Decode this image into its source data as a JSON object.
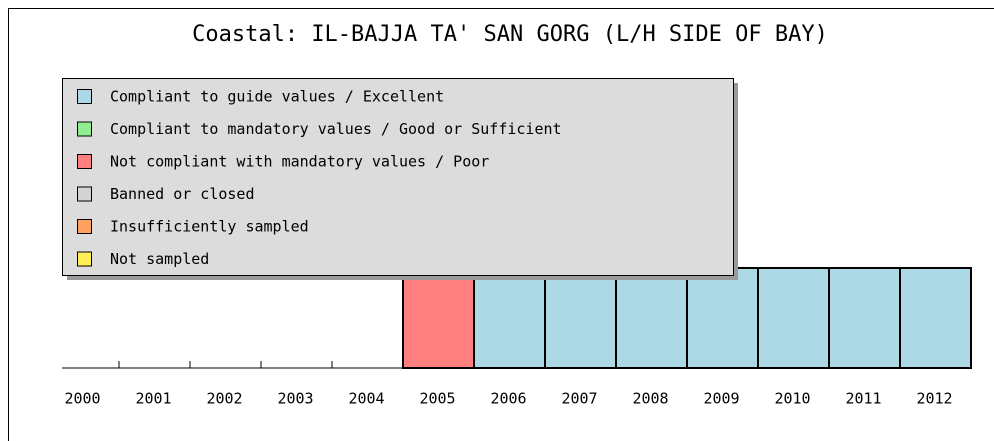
{
  "chart_data": {
    "type": "bar",
    "title": "Coastal: IL-BAJJA TA' SAN GORG (L/H SIDE OF BAY)",
    "categories": [
      "2000",
      "2001",
      "2002",
      "2003",
      "2004",
      "2005",
      "2006",
      "2007",
      "2008",
      "2009",
      "2010",
      "2011",
      "2012"
    ],
    "series": [
      {
        "name": "Compliant to guide values / Excellent",
        "color": "#add8e6",
        "values": [
          null,
          null,
          null,
          null,
          null,
          null,
          1,
          1,
          1,
          1,
          1,
          1,
          1
        ]
      },
      {
        "name": "Compliant to mandatory values / Good or Sufficient",
        "color": "#90ee90",
        "values": [
          null,
          null,
          null,
          null,
          null,
          null,
          null,
          null,
          null,
          null,
          null,
          null,
          null
        ]
      },
      {
        "name": "Not compliant with mandatory values / Poor",
        "color": "#ff7f7f",
        "values": [
          null,
          null,
          null,
          null,
          null,
          1,
          null,
          null,
          null,
          null,
          null,
          null,
          null
        ]
      },
      {
        "name": "Banned or closed",
        "color": "#d3d3d3",
        "values": [
          null,
          null,
          null,
          null,
          null,
          null,
          null,
          null,
          null,
          null,
          null,
          null,
          null
        ]
      },
      {
        "name": "Insufficiently sampled",
        "color": "#ffa060",
        "values": [
          null,
          null,
          null,
          null,
          null,
          null,
          null,
          null,
          null,
          null,
          null,
          null,
          null
        ]
      },
      {
        "name": "Not sampled",
        "color": "#ffee55",
        "values": [
          null,
          null,
          null,
          null,
          null,
          null,
          null,
          null,
          null,
          null,
          null,
          null,
          null
        ]
      }
    ]
  }
}
